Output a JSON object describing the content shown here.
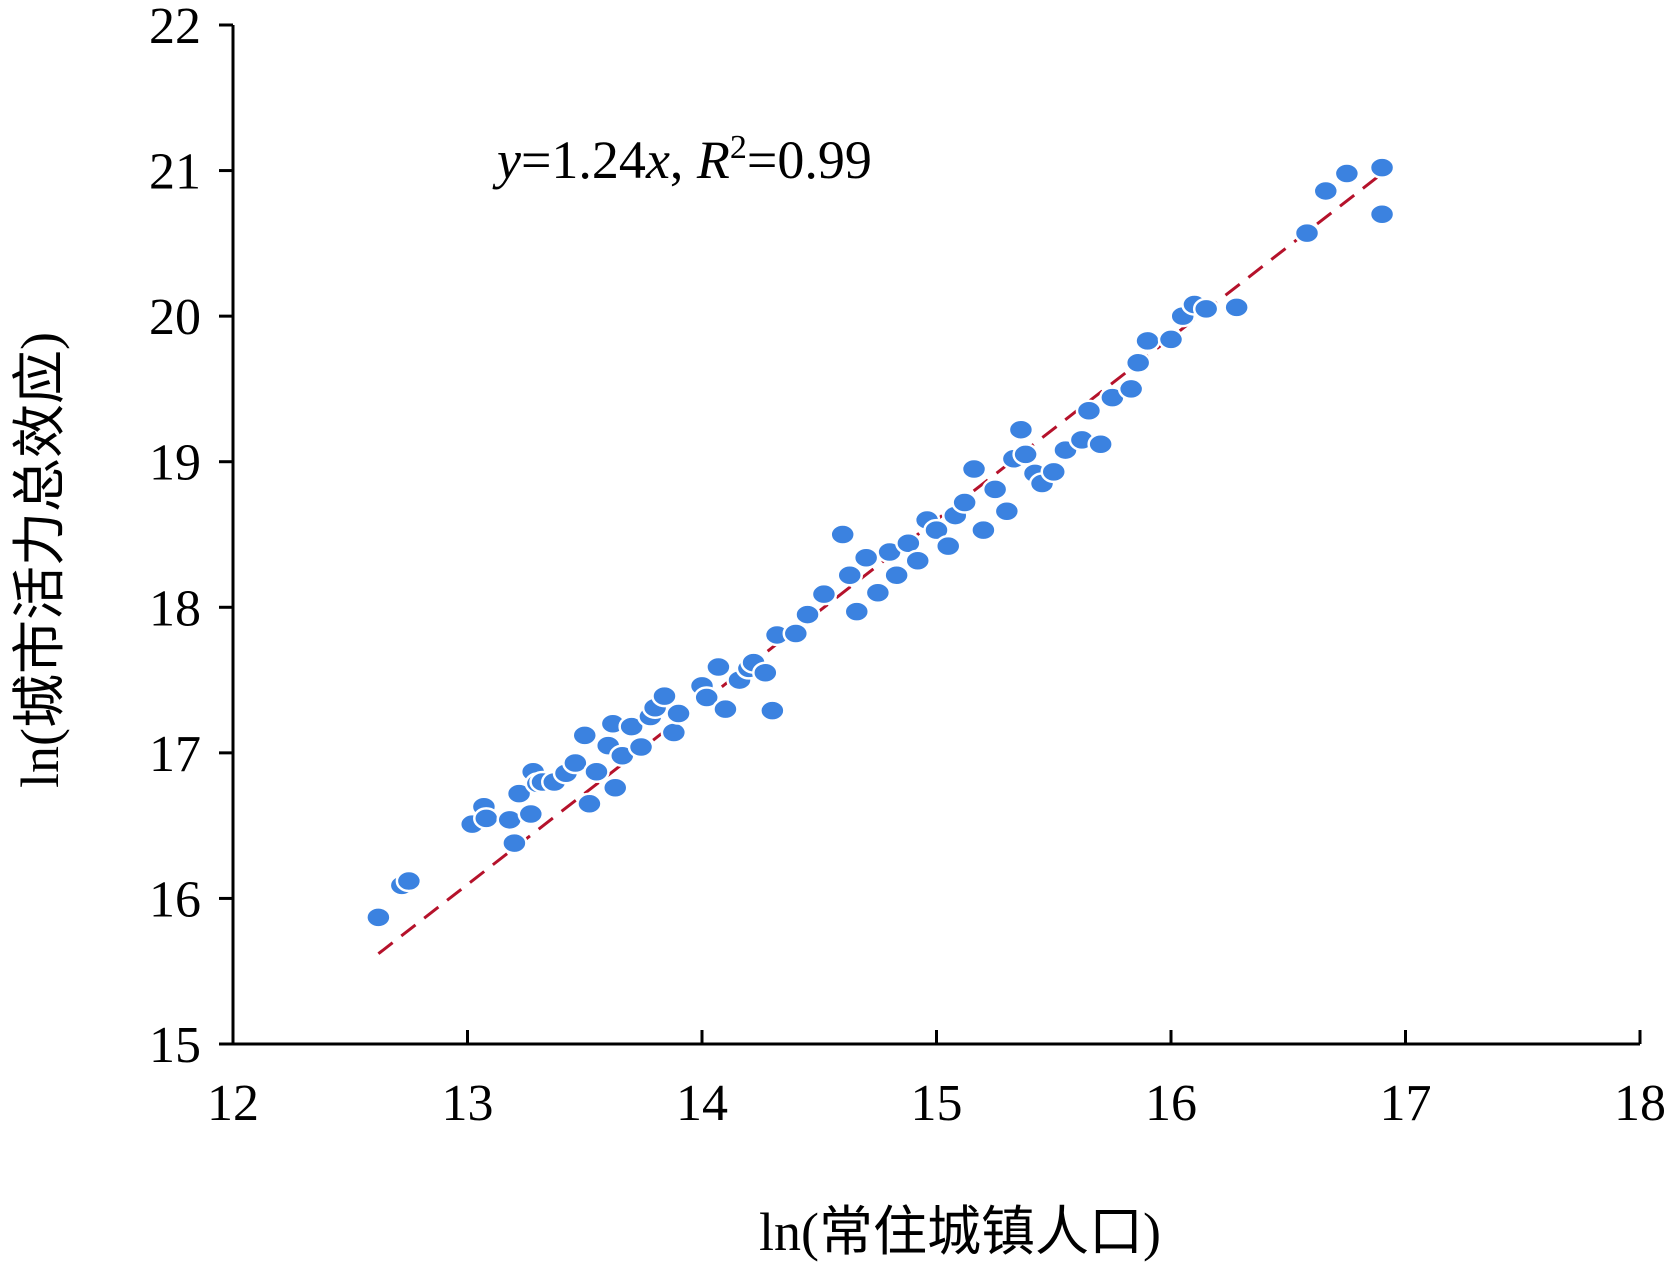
{
  "chart_data": {
    "type": "scatter",
    "title": "",
    "xlabel": "ln(常住城镇人口)",
    "ylabel": "ln(城市活力总效应)",
    "xlim": [
      12,
      18
    ],
    "ylim": [
      15,
      22
    ],
    "x_ticks": [
      12,
      13,
      14,
      15,
      16,
      17,
      18
    ],
    "y_ticks": [
      15,
      16,
      17,
      18,
      19,
      20,
      21,
      22
    ],
    "grid": false,
    "legend": "none",
    "colors": {
      "points": "#3b82e0",
      "point_edge": "#ffffff",
      "trendline": "#b5122b",
      "axis": "#000000"
    },
    "annotation": {
      "y_var": "y",
      "eq_mid": "=1.24",
      "x_var": "x",
      "sep": ", ",
      "r_var": "R",
      "r_sup": "2",
      "r_val": "=0.99"
    },
    "trendline": {
      "style": "dashed",
      "slope": 1.24,
      "points": [
        [
          12.62,
          15.62
        ],
        [
          16.9,
          20.98
        ]
      ]
    },
    "series": [
      {
        "x": [
          12.62,
          12.72,
          12.75,
          13.02,
          13.07,
          13.08,
          13.18,
          13.2,
          13.22,
          13.27,
          13.28,
          13.3,
          13.32,
          13.37,
          13.42,
          13.46,
          13.5,
          13.52,
          13.55,
          13.6,
          13.62,
          13.63,
          13.66,
          13.7,
          13.74,
          13.78,
          13.8,
          13.84,
          13.88,
          13.9,
          14.0,
          14.02,
          14.07,
          14.1,
          14.16,
          14.2,
          14.22,
          14.27,
          14.3,
          14.32,
          14.4,
          14.45,
          14.52,
          14.6,
          14.63,
          14.66,
          14.7,
          14.75,
          14.8,
          14.83,
          14.88,
          14.92,
          14.96,
          15.0,
          15.05,
          15.08,
          15.12,
          15.16,
          15.2,
          15.25,
          15.3,
          15.33,
          15.36,
          15.38,
          15.42,
          15.45,
          15.5,
          15.55,
          15.62,
          15.65,
          15.7,
          15.75,
          15.83,
          15.86,
          15.9,
          16.0,
          16.05,
          16.1,
          16.15,
          16.28,
          16.58,
          16.66,
          16.75,
          16.9,
          16.9
        ],
        "y": [
          15.87,
          16.09,
          16.12,
          16.51,
          16.63,
          16.55,
          16.54,
          16.38,
          16.72,
          16.58,
          16.87,
          16.79,
          16.8,
          16.8,
          16.86,
          16.93,
          17.12,
          16.65,
          16.87,
          17.05,
          17.2,
          16.76,
          16.98,
          17.18,
          17.04,
          17.25,
          17.31,
          17.39,
          17.14,
          17.27,
          17.46,
          17.38,
          17.59,
          17.3,
          17.5,
          17.58,
          17.62,
          17.55,
          17.29,
          17.81,
          17.82,
          17.95,
          18.09,
          18.5,
          18.22,
          17.97,
          18.34,
          18.1,
          18.38,
          18.22,
          18.44,
          18.32,
          18.6,
          18.53,
          18.42,
          18.63,
          18.72,
          18.95,
          18.53,
          18.81,
          18.66,
          19.02,
          19.22,
          19.05,
          18.92,
          18.85,
          18.93,
          19.08,
          19.15,
          19.35,
          19.12,
          19.44,
          19.5,
          19.68,
          19.83,
          19.84,
          20.0,
          20.08,
          20.05,
          20.06,
          20.57,
          20.86,
          20.98,
          21.02,
          20.7
        ]
      }
    ]
  }
}
